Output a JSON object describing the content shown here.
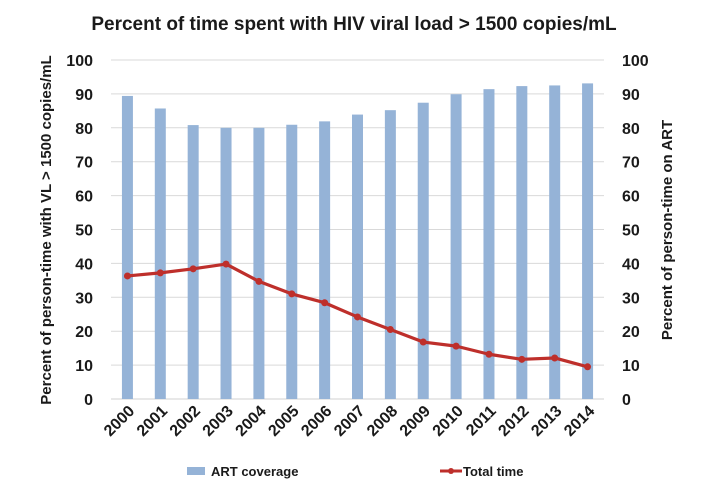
{
  "chart_data": {
    "type": "bar+line",
    "title": "Percent of time spent with HIV viral load > 1500 copies/mL",
    "xlabel": "",
    "ylabel": "Percent of person-time with VL > 1500 copies/mL",
    "y2label": "Percent of person-time on ART",
    "ylim": [
      0,
      100
    ],
    "y2lim": [
      0,
      100
    ],
    "yticks": [
      0,
      10,
      20,
      30,
      40,
      50,
      60,
      70,
      80,
      90,
      100
    ],
    "y2ticks": [
      0,
      10,
      20,
      30,
      40,
      50,
      60,
      70,
      80,
      90,
      100
    ],
    "grid": true,
    "legend_position": "bottom",
    "categories": [
      "2000",
      "2001",
      "2002",
      "2003",
      "2004",
      "2005",
      "2006",
      "2007",
      "2008",
      "2009",
      "2010",
      "2011",
      "2012",
      "2013",
      "2014"
    ],
    "series": [
      {
        "name": "ART coverage",
        "type": "bar",
        "axis": "right",
        "color": "#95B3D7",
        "values": [
          89.4,
          85.7,
          80.8,
          80.0,
          80.0,
          80.9,
          81.9,
          83.9,
          85.2,
          87.4,
          89.9,
          91.4,
          92.3,
          92.5,
          93.1
        ]
      },
      {
        "name": "Total time",
        "type": "line",
        "axis": "left",
        "color": "#BE2F2B",
        "values": [
          36.3,
          37.2,
          38.4,
          39.8,
          34.7,
          31.0,
          28.4,
          24.2,
          20.5,
          16.8,
          15.6,
          13.2,
          11.7,
          12.1,
          9.5
        ]
      }
    ]
  }
}
